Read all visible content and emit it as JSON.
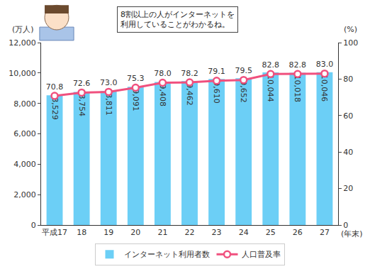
{
  "chart_data": {
    "type": "bar",
    "annotation": [
      "8割以上の人がインターネットを",
      "利用していることがわかるね。"
    ],
    "x_label": "(年末)",
    "y_label": "(万人)",
    "y2_label": "(%)",
    "categories": [
      "平成17",
      "18",
      "19",
      "20",
      "21",
      "22",
      "23",
      "24",
      "25",
      "26",
      "27"
    ],
    "series": [
      {
        "name": "インターネット利用者数",
        "type": "bar",
        "color": "#6ccff6",
        "values": [
          8529,
          8754,
          8811,
          9091,
          9408,
          9462,
          9610,
          9652,
          10044,
          10018,
          10046
        ],
        "value_labels": [
          "8,529",
          "8,754",
          "8,811",
          "9,091",
          "9,408",
          "9,462",
          "9,610",
          "9,652",
          "10,044",
          "10,018",
          "10,046"
        ]
      },
      {
        "name": "人口普及率",
        "type": "line",
        "axis": "y2",
        "color": "#f0507e",
        "marker": "circle",
        "values": [
          70.8,
          72.6,
          73.0,
          75.3,
          78.0,
          78.2,
          79.1,
          79.5,
          82.8,
          82.8,
          83.0
        ],
        "value_labels": [
          "70.8",
          "72.6",
          "73.0",
          "75.3",
          "78.0",
          "78.2",
          "79.1",
          "79.5",
          "82.8",
          "82.8",
          "83.0"
        ]
      }
    ],
    "ylim": [
      0,
      12000
    ],
    "yticks": [
      0,
      {
        "value": 2000,
        "label": "2,000"
      },
      {
        "value": 4000,
        "label": "4,000"
      },
      {
        "value": 6000,
        "label": "6,000"
      },
      {
        "value": 8000,
        "label": "8,000"
      },
      {
        "value": 10000,
        "label": "10,000"
      },
      {
        "value": 12000,
        "label": "12,000"
      }
    ],
    "y2lim": [
      0,
      100
    ],
    "y2ticks": [
      0,
      20,
      40,
      60,
      80,
      100
    ],
    "grid": false,
    "data_labels": true,
    "legend": "bottom"
  }
}
